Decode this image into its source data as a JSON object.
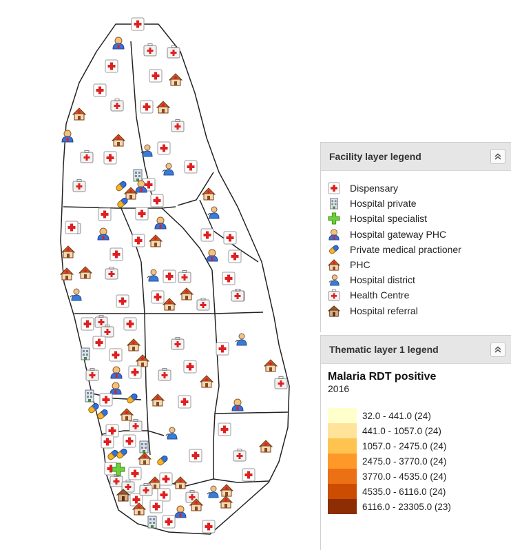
{
  "facility_legend": {
    "title": "Facility layer legend",
    "items": [
      {
        "label": "Dispensary",
        "icon": "dispensary-icon"
      },
      {
        "label": "Hospital private",
        "icon": "hospital-private-icon"
      },
      {
        "label": "Hospital specialist",
        "icon": "hospital-specialist-icon"
      },
      {
        "label": "Hospital gateway PHC",
        "icon": "hospital-gateway-icon"
      },
      {
        "label": "Private medical practioner",
        "icon": "pill-icon"
      },
      {
        "label": "PHC",
        "icon": "phc-icon"
      },
      {
        "label": "Hospital district",
        "icon": "hospital-district-icon"
      },
      {
        "label": "Health Centre",
        "icon": "health-centre-icon"
      },
      {
        "label": "Hospital referral",
        "icon": "hospital-referral-icon"
      }
    ]
  },
  "thematic_legend": {
    "header": "Thematic layer 1 legend",
    "title": "Malaria RDT positive",
    "period": "2016",
    "classes": [
      {
        "label": "32.0 - 441.0 (24)",
        "color": "#ffffcc"
      },
      {
        "label": "441.0 - 1057.0 (24)",
        "color": "#ffe39a"
      },
      {
        "label": "1057.0 - 2475.0 (24)",
        "color": "#fec44f"
      },
      {
        "label": "2475.0 - 3770.0 (24)",
        "color": "#fe9929"
      },
      {
        "label": "3770.0 - 4535.0 (24)",
        "color": "#ec7014"
      },
      {
        "label": "4535.0 - 6116.0 (24)",
        "color": "#cc4c02"
      },
      {
        "label": "6116.0 - 23305.0 (23)",
        "color": "#8c2d04"
      }
    ]
  }
}
